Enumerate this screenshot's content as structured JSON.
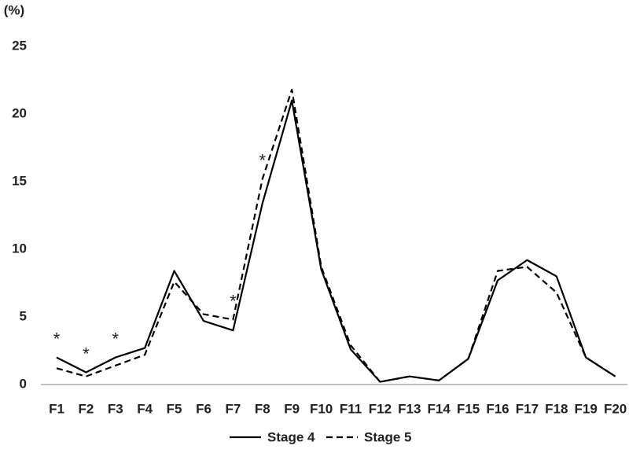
{
  "chart_data": {
    "type": "line",
    "y_label": "(%)",
    "categories": [
      "F1",
      "F2",
      "F3",
      "F4",
      "F5",
      "F6",
      "F7",
      "F8",
      "F9",
      "F10",
      "F11",
      "F12",
      "F13",
      "F14",
      "F15",
      "F16",
      "F17",
      "F18",
      "F19",
      "F20"
    ],
    "series": [
      {
        "name": "Stage 4",
        "color": "#000000",
        "dash": "solid",
        "values": [
          2.0,
          0.9,
          2.0,
          2.7,
          8.4,
          4.7,
          4.0,
          13.4,
          21.0,
          8.5,
          2.6,
          0.2,
          0.6,
          0.3,
          1.9,
          7.7,
          9.2,
          8.0,
          2.0,
          0.6
        ]
      },
      {
        "name": "Stage 5",
        "color": "#000000",
        "dash": "dashed",
        "values": [
          1.2,
          0.6,
          1.4,
          2.2,
          7.6,
          5.2,
          4.8,
          15.2,
          21.8,
          8.7,
          2.9,
          0.2,
          0.6,
          0.3,
          1.9,
          8.4,
          8.7,
          6.8,
          2.0,
          0.6
        ]
      }
    ],
    "significance": [
      "*",
      "*",
      "*",
      null,
      null,
      null,
      "*",
      "*",
      null,
      null,
      null,
      null,
      null,
      null,
      null,
      null,
      null,
      null,
      null,
      null
    ],
    "ylim": [
      0,
      25
    ],
    "yticks": [
      0,
      5,
      10,
      15,
      20,
      25
    ],
    "grid": false,
    "legend": "bottom"
  }
}
